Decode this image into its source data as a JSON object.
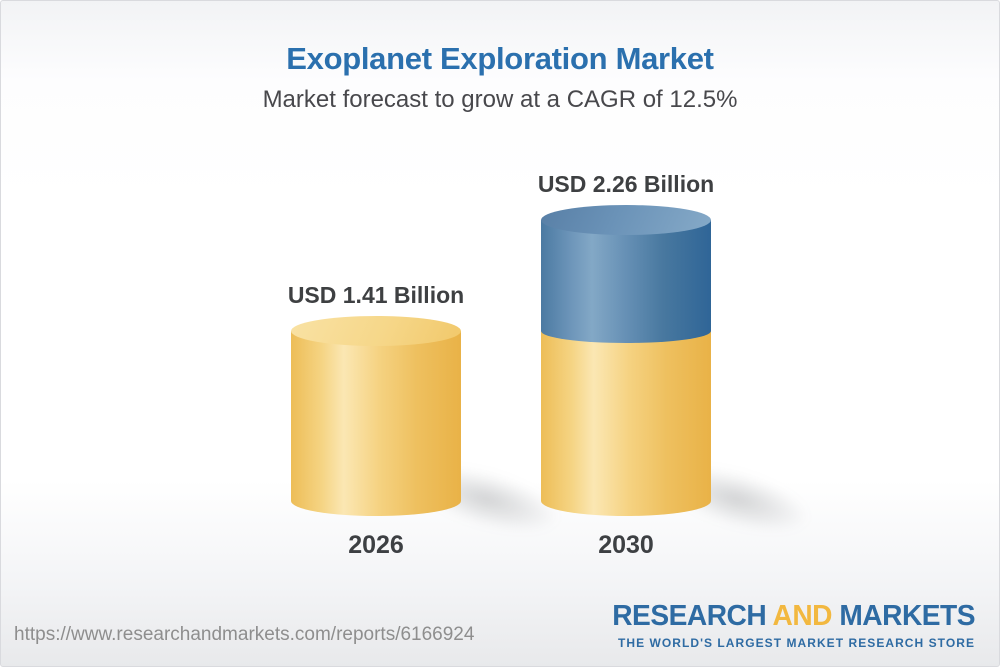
{
  "header": {
    "title": "Exoplanet Exploration Market",
    "subtitle": "Market forecast to grow at a CAGR of 12.5%"
  },
  "chart_data": {
    "type": "bar",
    "variant": "3d-cylinder",
    "title": "Exoplanet Exploration Market",
    "subtitle": "Market forecast to grow at a CAGR of 12.5%",
    "categories": [
      "2026",
      "2030"
    ],
    "values": [
      1.41,
      2.26
    ],
    "value_labels": [
      "USD 1.41 Billion",
      "USD 2.26 Billion"
    ],
    "unit": "USD Billion",
    "cagr_percent": 12.5,
    "xlabel": "",
    "ylabel": "",
    "legend": "none",
    "axes_visible": false,
    "grid": false,
    "colors": {
      "base_segment": "#EFC464",
      "growth_segment": "#4E7EA8",
      "title": "#2B70AE",
      "label_text": "#3E4042"
    }
  },
  "footer": {
    "report_url": "https://www.researchandmarkets.com/reports/6166924",
    "logo": {
      "word_research": "RESEARCH",
      "word_and": "AND",
      "word_markets": "MARKETS",
      "tagline": "THE WORLD'S LARGEST MARKET RESEARCH STORE",
      "brand_blue": "#2E6BA3",
      "brand_gold": "#F2B840"
    }
  }
}
